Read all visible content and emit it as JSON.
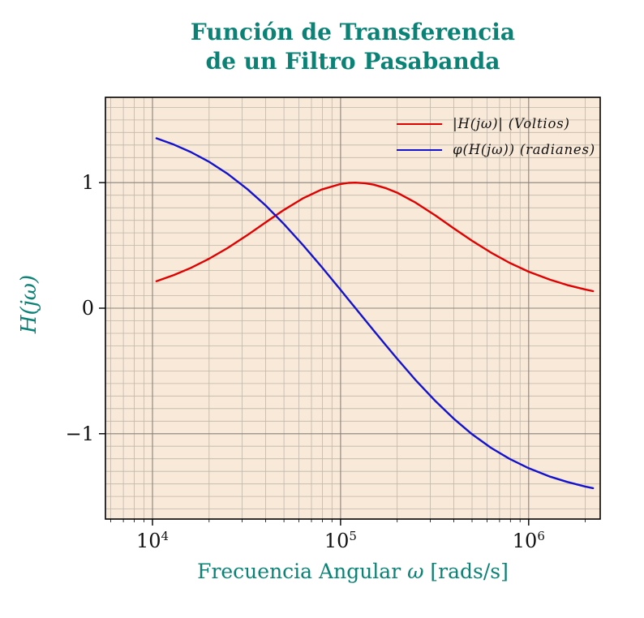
{
  "title": {
    "line1": "Función de Transferencia",
    "line2": "de un Filtro Pasabanda"
  },
  "colors": {
    "accent_teal": "#0b8276",
    "magnitude_red": "#e10000",
    "phase_blue": "#1212cf",
    "plot_bg": "#f9e9d8",
    "grid_minor": "#bfb7ab",
    "grid_major": "#87827b",
    "axis_black": "#111111"
  },
  "axes": {
    "y_label": "H(jω)",
    "x_label_prefix": "Frecuencia Angular ",
    "x_label_omega": "ω",
    "x_label_units": " [rads/s]",
    "x_ticks": [
      {
        "base": "10",
        "exp": "4",
        "value": 10000
      },
      {
        "base": "10",
        "exp": "5",
        "value": 100000
      },
      {
        "base": "10",
        "exp": "6",
        "value": 1000000
      }
    ],
    "y_ticks": [
      {
        "label": "1",
        "value": 1
      },
      {
        "label": "0",
        "value": 0
      },
      {
        "label": "−1",
        "value": -1
      }
    ]
  },
  "chart_data": {
    "type": "line",
    "title": "Función de Transferencia de un Filtro Pasabanda",
    "xlabel": "Frecuencia Angular ω [rads/s]",
    "ylabel": "H(jω)",
    "x_scale": "log",
    "xlim": [
      5623,
      2400000
    ],
    "ylim": [
      -1.68,
      1.68
    ],
    "x_major_ticks": [
      10000,
      100000,
      1000000
    ],
    "y_major_ticks": [
      -1,
      0,
      1
    ],
    "y_minor_step": 0.1,
    "grid": "both",
    "legend_position": "top-right",
    "x": [
      10500,
      13000,
      16000,
      20000,
      25000,
      32000,
      40000,
      50000,
      63000,
      79000,
      100000,
      110000,
      120000,
      135000,
      150000,
      175000,
      200000,
      250000,
      320000,
      400000,
      500000,
      630000,
      790000,
      1000000,
      1300000,
      1600000,
      2000000,
      2200000
    ],
    "series": [
      {
        "key": "magnitude",
        "name": "|H(jω)| (Voltios)",
        "color": "#e10000",
        "values": [
          0.215,
          0.264,
          0.321,
          0.394,
          0.478,
          0.583,
          0.684,
          0.783,
          0.875,
          0.945,
          0.989,
          0.998,
          1.0,
          0.996,
          0.984,
          0.955,
          0.92,
          0.842,
          0.737,
          0.636,
          0.537,
          0.443,
          0.362,
          0.291,
          0.227,
          0.185,
          0.149,
          0.136
        ]
      },
      {
        "key": "phase",
        "name": "φ(H(jω)) (radianes)",
        "color": "#1212cf",
        "values": [
          1.354,
          1.303,
          1.244,
          1.166,
          1.072,
          0.948,
          0.818,
          0.67,
          0.504,
          0.332,
          0.146,
          0.07,
          0.0,
          -0.094,
          -0.178,
          -0.3,
          -0.403,
          -0.571,
          -0.742,
          -0.881,
          -1.004,
          -1.112,
          -1.2,
          -1.275,
          -1.342,
          -1.384,
          -1.421,
          -1.434
        ]
      }
    ]
  }
}
